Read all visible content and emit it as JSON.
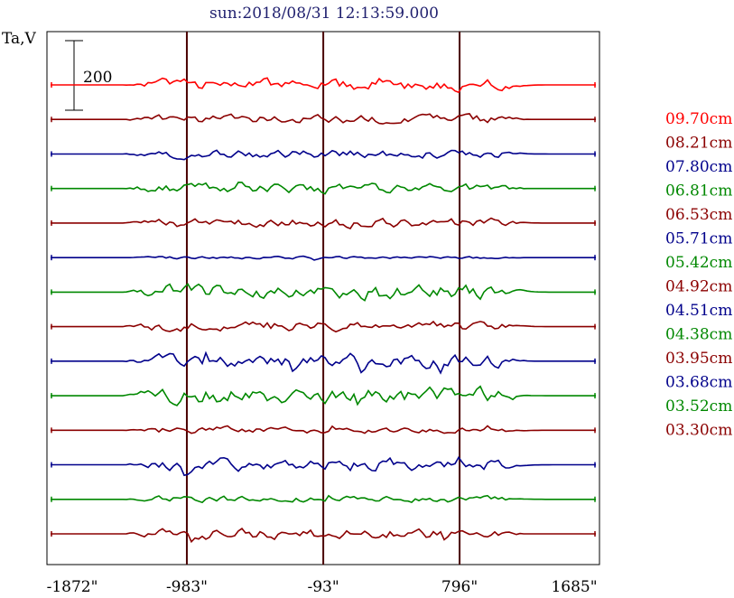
{
  "chart_data": {
    "type": "line",
    "title": "sun:2018/08/31 12:13:59.000",
    "ylabel": "Ta,V",
    "scale_bar_label": "200",
    "xlim": [
      -1872,
      1685
    ],
    "x_ticks": [
      {
        "value": -1872,
        "label": "-1872\""
      },
      {
        "value": -983,
        "label": "-983\""
      },
      {
        "value": -93,
        "label": "-93\""
      },
      {
        "value": 796,
        "label": "796\""
      },
      {
        "value": 1685,
        "label": "1685\""
      }
    ],
    "vlines": [
      -983,
      -93,
      796
    ],
    "grid": false,
    "legend_position": "right",
    "colors": {
      "red": "#ff0000",
      "brown": "#8b0000",
      "blue": "#00008b",
      "green": "#008800",
      "frame": "#000000",
      "vline": "#4a0000"
    },
    "series": [
      {
        "name": "09.70cm",
        "color": "#ff0000",
        "activity": 1.1,
        "seed": 11
      },
      {
        "name": "08.21cm",
        "color": "#8b0000",
        "activity": 0.8,
        "seed": 23
      },
      {
        "name": "07.80cm",
        "color": "#00008b",
        "activity": 0.8,
        "seed": 37
      },
      {
        "name": "06.81cm",
        "color": "#008800",
        "activity": 0.9,
        "seed": 41
      },
      {
        "name": "06.53cm",
        "color": "#8b0000",
        "activity": 0.9,
        "seed": 53
      },
      {
        "name": "05.71cm",
        "color": "#00008b",
        "activity": 0.25,
        "seed": 67
      },
      {
        "name": "05.42cm",
        "color": "#008800",
        "activity": 1.4,
        "seed": 71
      },
      {
        "name": "04.92cm",
        "color": "#8b0000",
        "activity": 1.0,
        "seed": 83
      },
      {
        "name": "04.51cm",
        "color": "#00008b",
        "activity": 1.2,
        "seed": 97
      },
      {
        "name": "04.38cm",
        "color": "#008800",
        "activity": 1.6,
        "seed": 101
      },
      {
        "name": "03.95cm",
        "color": "#8b0000",
        "activity": 0.6,
        "seed": 113
      },
      {
        "name": "03.68cm",
        "color": "#00008b",
        "activity": 1.2,
        "seed": 127
      },
      {
        "name": "03.52cm",
        "color": "#008800",
        "activity": 0.6,
        "seed": 131
      },
      {
        "name": "03.30cm",
        "color": "#8b0000",
        "activity": 1.0,
        "seed": 139
      }
    ]
  }
}
